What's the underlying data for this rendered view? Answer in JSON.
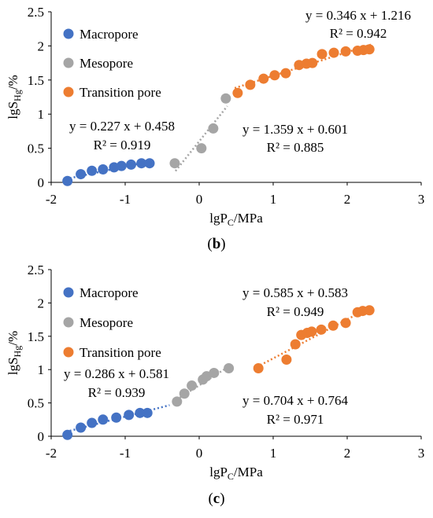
{
  "colors": {
    "macropore": "#4472C4",
    "mesopore": "#A5A5A5",
    "transition": "#ED7D31",
    "axis": "#000000",
    "tick": "#595959"
  },
  "chart_data": [
    {
      "type": "scatter",
      "panel": "b",
      "caption": {
        "open": "(",
        "letter": "b",
        "close": ")"
      },
      "xlabel": {
        "main": "lgP",
        "sub": "C",
        "tail": "/MPa"
      },
      "ylabel": {
        "main": "lgS",
        "sub": "Hg",
        "tail": "/%"
      },
      "xlim": [
        -2,
        3
      ],
      "ylim": [
        0,
        2.5
      ],
      "xticks": [
        "-2",
        "-1",
        "0",
        "1",
        "2",
        "3"
      ],
      "yticks": [
        "0",
        "0.5",
        "1",
        "1.5",
        "2",
        "2.5"
      ],
      "grid": false,
      "legend_position": "top-left",
      "series": [
        {
          "name": "Macropore",
          "color_key": "macropore",
          "x": [
            -1.78,
            -1.6,
            -1.45,
            -1.3,
            -1.15,
            -1.05,
            -0.92,
            -0.78,
            -0.67
          ],
          "y": [
            0.02,
            0.12,
            0.17,
            0.19,
            0.22,
            0.24,
            0.26,
            0.28,
            0.28
          ],
          "fit": {
            "slope": 0.227,
            "intercept": 0.458,
            "x_range": [
              -1.8,
              -0.65
            ],
            "equation": "y = 0.227 x + 0.458",
            "r2": "R² = 0.919"
          }
        },
        {
          "name": "Mesopore",
          "color_key": "mesopore",
          "x": [
            -0.33,
            0.03,
            0.19,
            0.36
          ],
          "y": [
            0.28,
            0.5,
            0.79,
            1.23
          ],
          "fit": {
            "slope": 1.359,
            "intercept": 0.601,
            "x_range": [
              -0.32,
              0.38
            ],
            "equation": "y = 1.359 x + 0.601",
            "r2": "R² = 0.885"
          }
        },
        {
          "name": "Transition pore",
          "color_key": "transition",
          "x": [
            0.52,
            0.69,
            0.87,
            1.02,
            1.17,
            1.35,
            1.45,
            1.53,
            1.66,
            1.82,
            1.98,
            2.14,
            2.22,
            2.3
          ],
          "y": [
            1.31,
            1.43,
            1.52,
            1.57,
            1.6,
            1.72,
            1.74,
            1.75,
            1.88,
            1.9,
            1.92,
            1.93,
            1.94,
            1.95
          ],
          "fit": {
            "slope": 0.346,
            "intercept": 1.216,
            "x_range": [
              0.48,
              2.32
            ],
            "equation": "y = 0.346 x + 1.216",
            "r2": "R² = 0.942"
          }
        }
      ]
    },
    {
      "type": "scatter",
      "panel": "c",
      "caption": {
        "open": "(",
        "letter": "c",
        "close": ")"
      },
      "xlabel": {
        "main": "lgP",
        "sub": "C",
        "tail": "/MPa"
      },
      "ylabel": {
        "main": "lgS",
        "sub": "Hg",
        "tail": "/%"
      },
      "xlim": [
        -2,
        3
      ],
      "ylim": [
        0,
        2.5
      ],
      "xticks": [
        "-2",
        "-1",
        "0",
        "1",
        "2",
        "3"
      ],
      "yticks": [
        "0",
        "0.5",
        "1",
        "1.5",
        "2",
        "2.5"
      ],
      "grid": false,
      "legend_position": "top-left",
      "series": [
        {
          "name": "Macropore",
          "color_key": "macropore",
          "x": [
            -1.78,
            -1.6,
            -1.45,
            -1.3,
            -1.12,
            -0.95,
            -0.8,
            -0.7
          ],
          "y": [
            0.02,
            0.13,
            0.2,
            0.25,
            0.28,
            0.32,
            0.35,
            0.35
          ],
          "fit": {
            "slope": 0.286,
            "intercept": 0.581,
            "x_range": [
              -1.8,
              -0.4
            ],
            "equation": "y = 0.286 x + 0.581",
            "r2": "R² = 0.939"
          }
        },
        {
          "name": "Mesopore",
          "color_key": "mesopore",
          "x": [
            -0.3,
            -0.2,
            -0.1,
            0.05,
            0.1,
            0.2,
            0.4
          ],
          "y": [
            0.52,
            0.64,
            0.76,
            0.85,
            0.9,
            0.95,
            1.02
          ],
          "fit": {
            "slope": 0.704,
            "intercept": 0.764,
            "x_range": [
              -0.35,
              0.4
            ],
            "equation": "y = 0.704 x + 0.764",
            "r2": "R² = 0.971"
          }
        },
        {
          "name": "Transition pore",
          "color_key": "transition",
          "x": [
            0.8,
            1.18,
            1.3,
            1.38,
            1.46,
            1.52,
            1.65,
            1.81,
            1.98,
            2.14,
            2.21,
            2.3
          ],
          "y": [
            1.02,
            1.15,
            1.38,
            1.52,
            1.55,
            1.57,
            1.6,
            1.66,
            1.7,
            1.86,
            1.88,
            1.89
          ],
          "fit": {
            "slope": 0.585,
            "intercept": 0.583,
            "x_range": [
              0.78,
              2.32
            ],
            "equation": "y = 0.585 x + 0.583",
            "r2": "R² = 0.949"
          }
        }
      ]
    }
  ]
}
